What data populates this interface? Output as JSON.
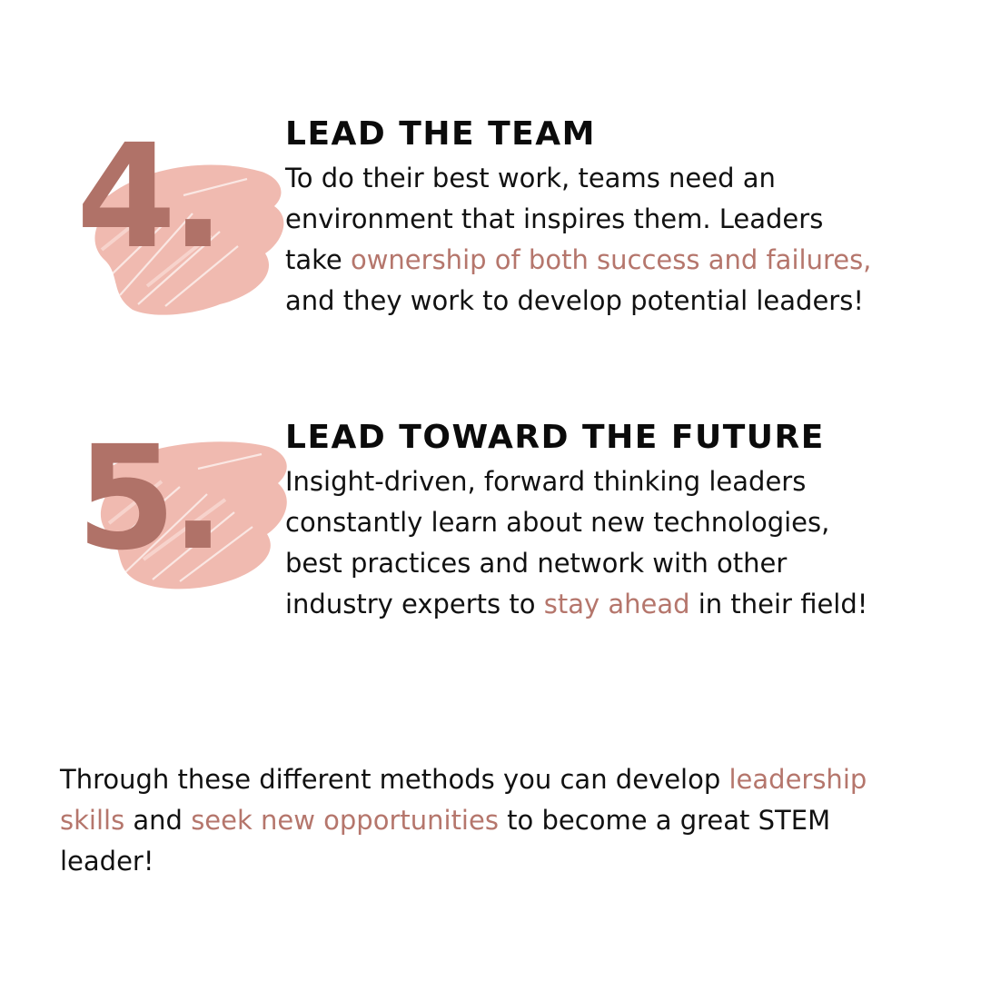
{
  "colors": {
    "accent": "#b5766c",
    "numeral": "#b07268",
    "brush": "#f0bab0",
    "text": "#111111"
  },
  "sections": [
    {
      "number": "4.",
      "heading": "Lead the team",
      "body": [
        {
          "text": "To do their best work, teams need an environment that inspires them. Leaders take ",
          "highlight": false
        },
        {
          "text": "ownership of both success and failures,",
          "highlight": true
        },
        {
          "text": " and they work to develop potential leaders!",
          "highlight": false
        }
      ]
    },
    {
      "number": "5.",
      "heading": "Lead toward the future",
      "body": [
        {
          "text": "Insight-driven, forward thinking leaders constantly learn about new technologies, best practices and network with other industry experts to ",
          "highlight": false
        },
        {
          "text": "stay ahead",
          "highlight": true
        },
        {
          "text": " in their field!",
          "highlight": false
        }
      ]
    }
  ],
  "outro": [
    {
      "text": "Through these different methods you can develop ",
      "highlight": false
    },
    {
      "text": "leadership skills",
      "highlight": true
    },
    {
      "text": " and ",
      "highlight": false
    },
    {
      "text": "seek new opportunities",
      "highlight": true
    },
    {
      "text": " to become a great STEM leader!",
      "highlight": false
    }
  ]
}
